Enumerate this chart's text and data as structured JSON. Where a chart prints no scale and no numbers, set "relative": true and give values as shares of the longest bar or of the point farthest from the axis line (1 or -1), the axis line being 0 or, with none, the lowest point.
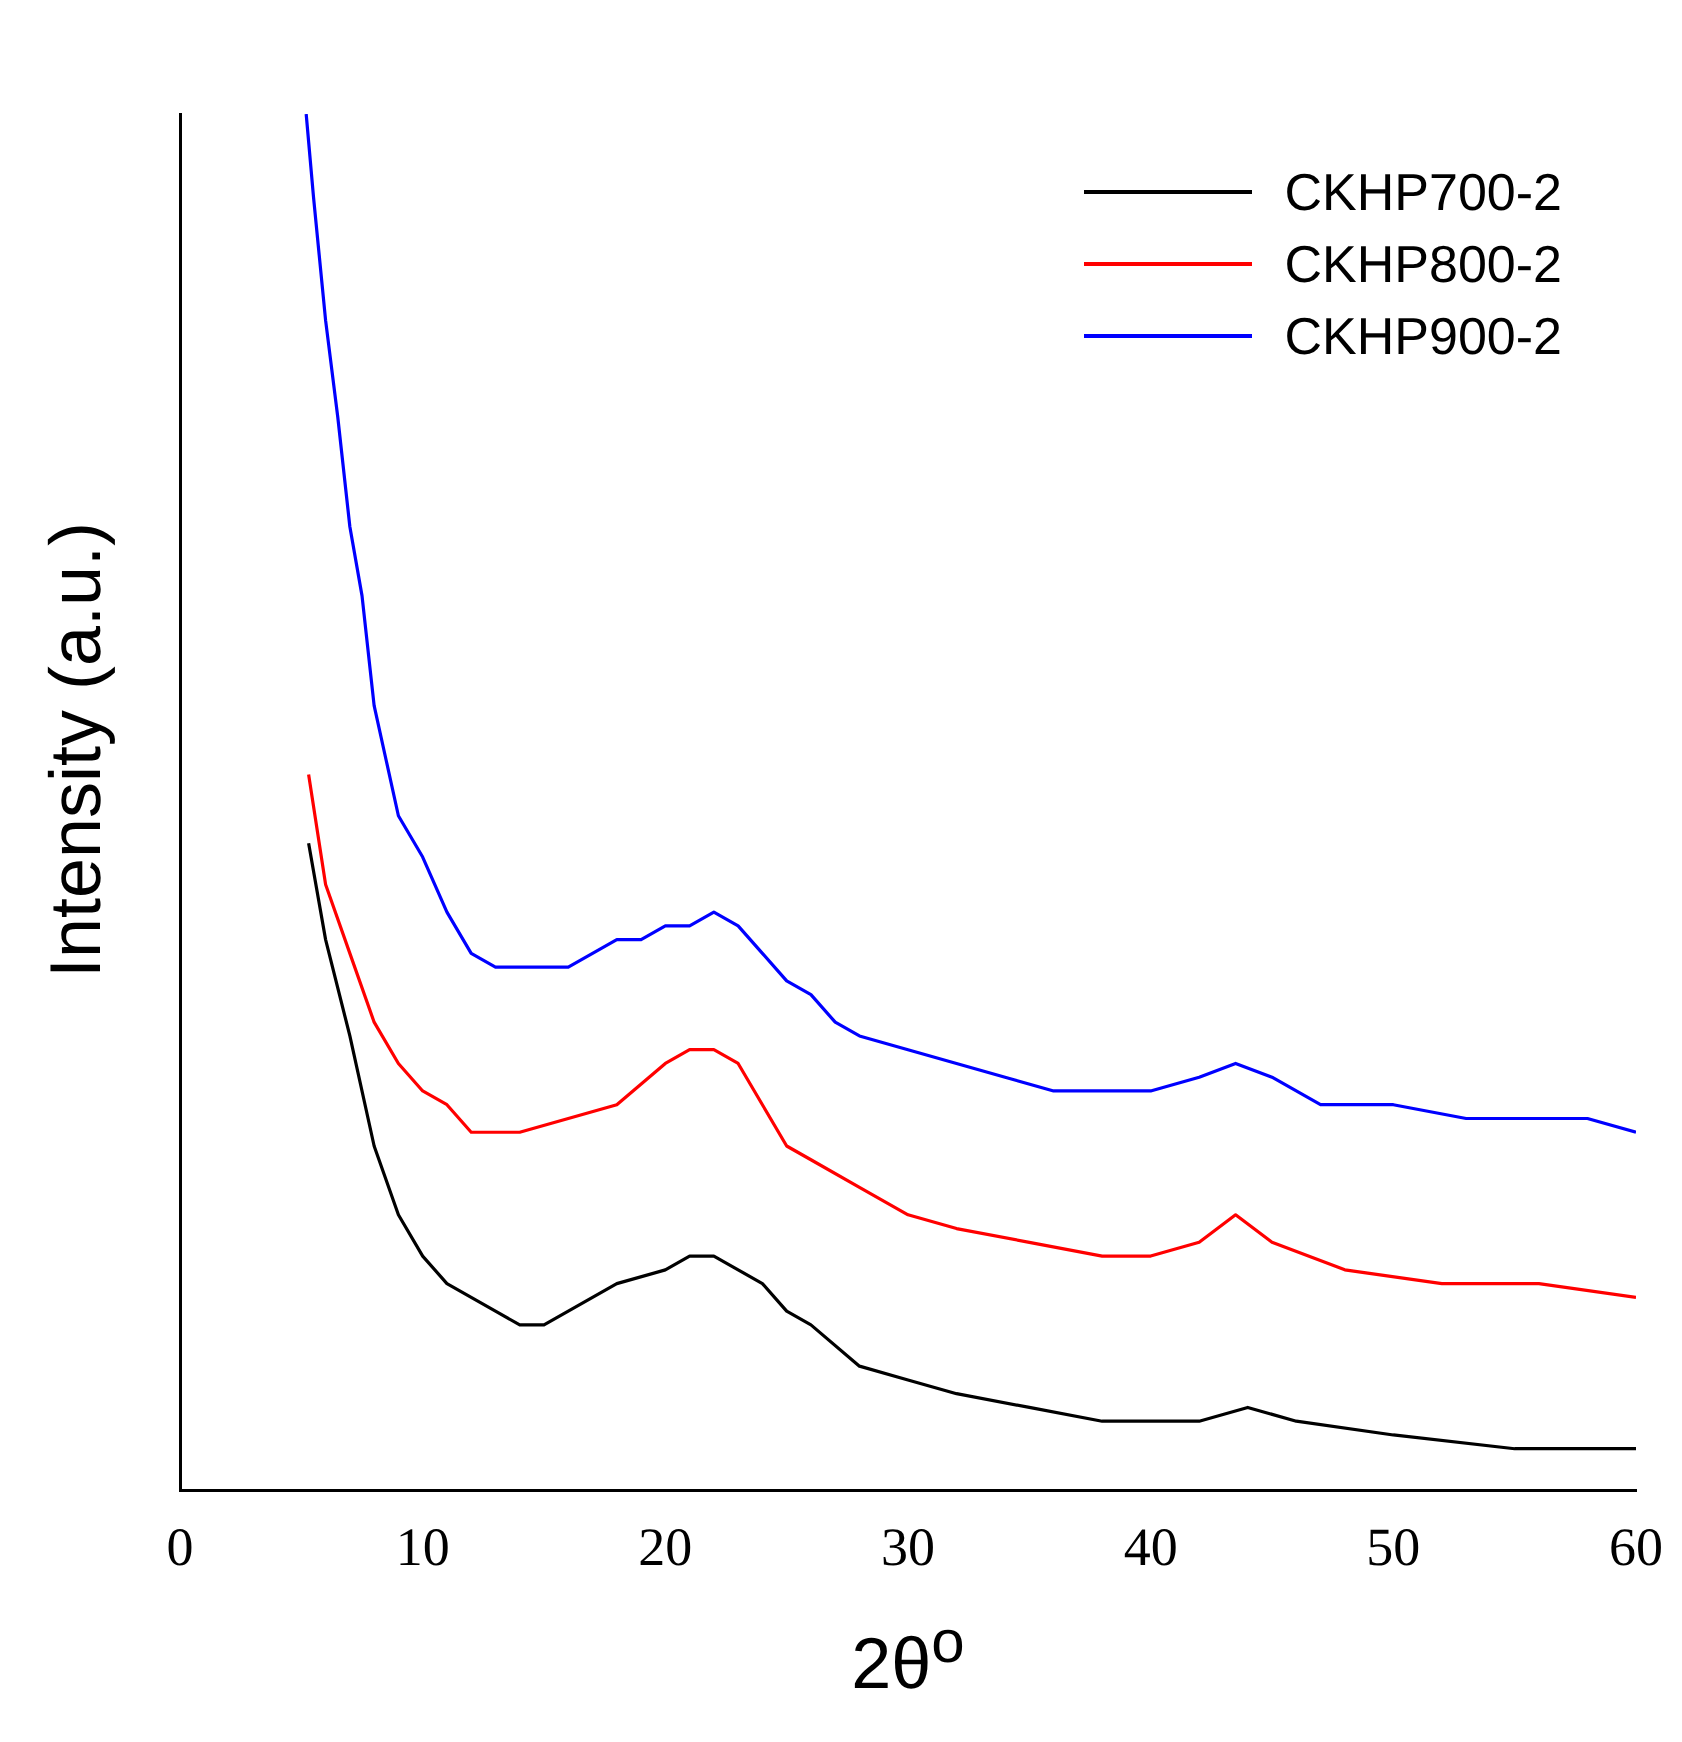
{
  "chart_data": {
    "type": "line",
    "xlabel": "2θ$^{o}$",
    "ylabel": "Intensity (a.u.)",
    "relative": true,
    "xlim": [
      0,
      60
    ],
    "xticks": [
      0,
      10,
      20,
      30,
      40,
      50,
      60
    ],
    "legend": "top right",
    "grid": false,
    "series": [
      {
        "name": "CKHP700-2",
        "color": "#000000",
        "x": [
          5.3,
          6,
          7,
          8,
          9,
          10,
          11,
          12,
          13,
          14,
          15,
          16,
          18,
          20,
          21,
          22,
          23,
          24,
          25,
          26,
          28,
          30,
          32,
          35,
          38,
          40,
          42,
          44,
          46,
          50,
          55,
          60
        ],
        "values": [
          0.47,
          0.4,
          0.33,
          0.25,
          0.2,
          0.17,
          0.15,
          0.14,
          0.13,
          0.12,
          0.12,
          0.13,
          0.15,
          0.16,
          0.17,
          0.17,
          0.16,
          0.15,
          0.13,
          0.12,
          0.09,
          0.08,
          0.07,
          0.06,
          0.05,
          0.05,
          0.05,
          0.06,
          0.05,
          0.04,
          0.03,
          0.03
        ]
      },
      {
        "name": "CKHP800-2",
        "color": "#ff0000",
        "x": [
          5.3,
          6,
          7,
          8,
          9,
          10,
          11,
          12,
          14,
          16,
          18,
          20,
          21,
          22,
          23,
          24,
          25,
          26,
          28,
          30,
          32,
          35,
          38,
          40,
          42,
          43.5,
          45,
          48,
          52,
          56,
          60
        ],
        "values": [
          0.52,
          0.44,
          0.39,
          0.34,
          0.31,
          0.29,
          0.28,
          0.26,
          0.26,
          0.27,
          0.28,
          0.31,
          0.32,
          0.32,
          0.31,
          0.28,
          0.25,
          0.24,
          0.22,
          0.2,
          0.19,
          0.18,
          0.17,
          0.17,
          0.18,
          0.2,
          0.18,
          0.16,
          0.15,
          0.15,
          0.14
        ]
      },
      {
        "name": "CKHP900-2",
        "color": "#0000ff",
        "x": [
          5.2,
          5.5,
          6,
          6.5,
          7,
          7.5,
          8,
          8.5,
          9,
          10,
          11,
          12,
          13,
          14,
          15,
          16,
          17,
          18,
          19,
          20,
          21,
          22,
          23,
          24,
          25,
          26,
          27,
          28,
          30,
          32,
          34,
          36,
          38,
          40,
          42,
          43.5,
          45,
          47,
          50,
          53,
          56,
          58,
          60
        ],
        "values": [
          1.0,
          0.94,
          0.85,
          0.78,
          0.7,
          0.65,
          0.57,
          0.53,
          0.49,
          0.46,
          0.42,
          0.39,
          0.38,
          0.38,
          0.38,
          0.38,
          0.39,
          0.4,
          0.4,
          0.41,
          0.41,
          0.42,
          0.41,
          0.39,
          0.37,
          0.36,
          0.34,
          0.33,
          0.32,
          0.31,
          0.3,
          0.29,
          0.29,
          0.29,
          0.3,
          0.31,
          0.3,
          0.28,
          0.28,
          0.27,
          0.27,
          0.27,
          0.26
        ]
      }
    ]
  }
}
